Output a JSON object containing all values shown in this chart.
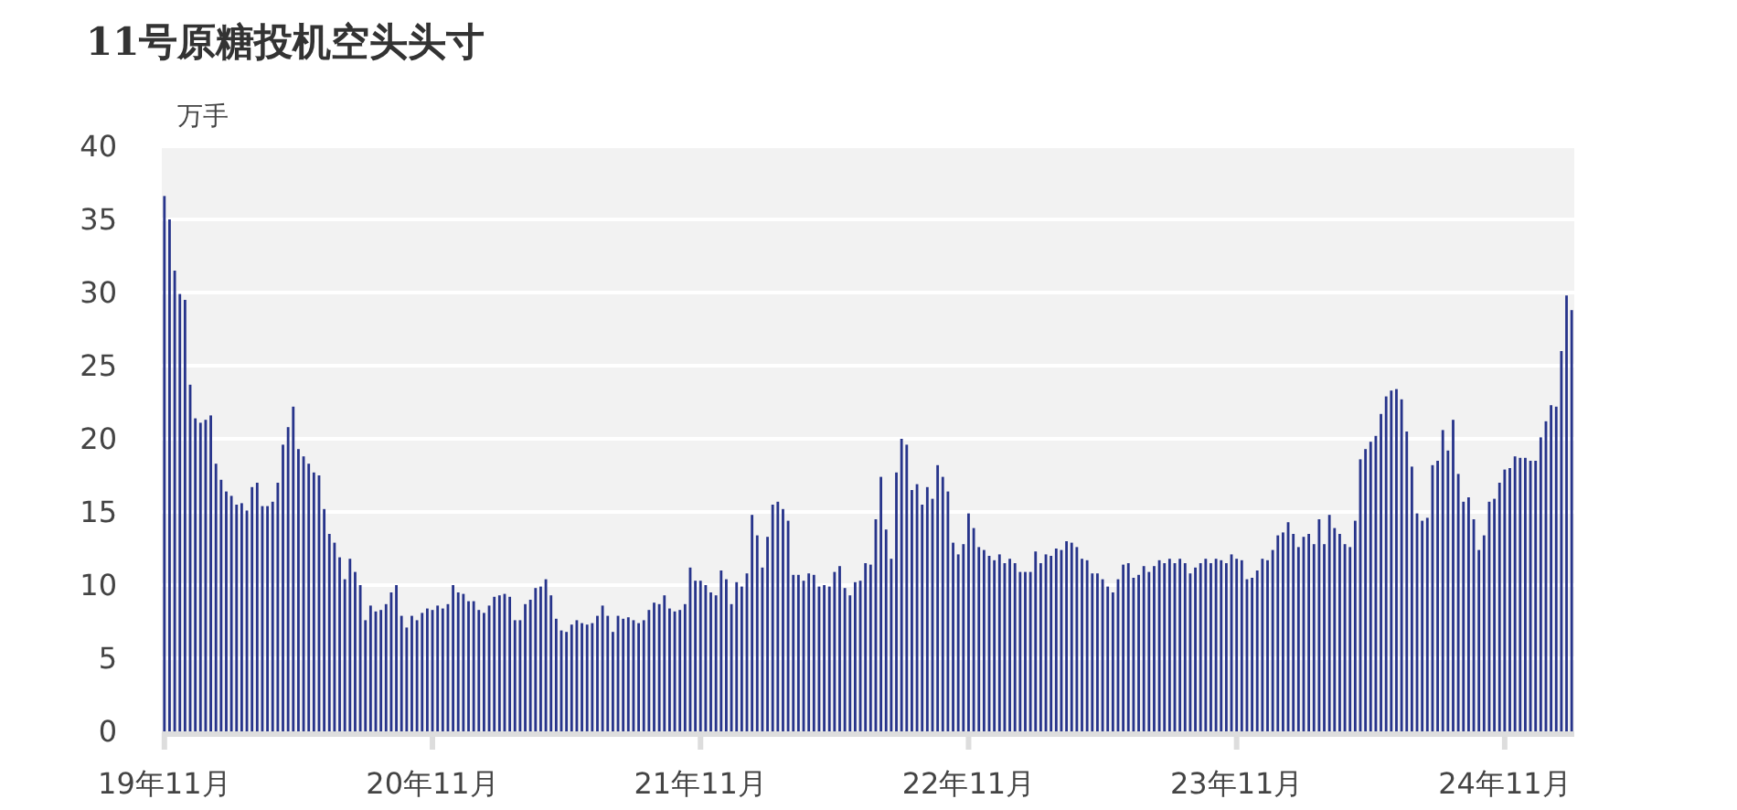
{
  "chart_data": {
    "type": "bar",
    "title": "11号原糖投机空头头寸",
    "ylabel": "万手",
    "categories": [
      "19年11月",
      null,
      null,
      null,
      null,
      null,
      null,
      null,
      null,
      null,
      null,
      null,
      null,
      null,
      null,
      null,
      null,
      null,
      null,
      null,
      null,
      null,
      null,
      null,
      null,
      null,
      null,
      null,
      null,
      null,
      null,
      null,
      null,
      null,
      null,
      null,
      null,
      null,
      null,
      null,
      null,
      null,
      null,
      null,
      null,
      null,
      null,
      null,
      null,
      null,
      null,
      null,
      "20年11月",
      null,
      null,
      null,
      null,
      null,
      null,
      null,
      null,
      null,
      null,
      null,
      null,
      null,
      null,
      null,
      null,
      null,
      null,
      null,
      null,
      null,
      null,
      null,
      null,
      null,
      null,
      null,
      null,
      null,
      null,
      null,
      null,
      null,
      null,
      null,
      null,
      null,
      null,
      null,
      null,
      null,
      null,
      null,
      null,
      null,
      null,
      null,
      null,
      null,
      null,
      null,
      "21年11月",
      null,
      null,
      null,
      null,
      null,
      null,
      null,
      null,
      null,
      null,
      null,
      null,
      null,
      null,
      null,
      null,
      null,
      null,
      null,
      null,
      null,
      null,
      null,
      null,
      null,
      null,
      null,
      null,
      null,
      null,
      null,
      null,
      null,
      null,
      null,
      null,
      null,
      null,
      null,
      null,
      null,
      null,
      null,
      null,
      null,
      null,
      null,
      null,
      null,
      null,
      null,
      "22年11月",
      null,
      null,
      null,
      null,
      null,
      null,
      null,
      null,
      null,
      null,
      null,
      null,
      null,
      null,
      null,
      null,
      null,
      null,
      null,
      null,
      null,
      null,
      null,
      null,
      null,
      null,
      null,
      null,
      null,
      null,
      null,
      null,
      null,
      null,
      null,
      null,
      null,
      null,
      null,
      null,
      null,
      null,
      null,
      null,
      null,
      null,
      null,
      null,
      null,
      null,
      null,
      "23年11月",
      null,
      null,
      null,
      null,
      null,
      null,
      null,
      null,
      null,
      null,
      null,
      null,
      null,
      null,
      null,
      null,
      null,
      null,
      null,
      null,
      null,
      null,
      null,
      null,
      null,
      null,
      null,
      null,
      null,
      null,
      null,
      null,
      null,
      null,
      null,
      null,
      null,
      null,
      null,
      null,
      null,
      null,
      null,
      null,
      null,
      null,
      null,
      null,
      null,
      null,
      null,
      "24年11月",
      null,
      null,
      null,
      null,
      null,
      null,
      null,
      null,
      null,
      null,
      null,
      null,
      null
    ],
    "values": [
      36.6,
      35.0,
      31.5,
      29.9,
      29.5,
      23.7,
      21.4,
      21.1,
      21.3,
      21.6,
      18.3,
      17.2,
      16.4,
      16.1,
      15.5,
      15.6,
      15.1,
      16.7,
      17.0,
      15.4,
      15.4,
      15.7,
      17.0,
      19.6,
      20.8,
      22.2,
      19.3,
      18.8,
      18.3,
      17.7,
      17.5,
      15.2,
      13.5,
      12.9,
      11.9,
      10.4,
      11.8,
      10.9,
      10.0,
      7.6,
      8.6,
      8.2,
      8.3,
      8.7,
      9.5,
      10.0,
      7.9,
      7.1,
      7.9,
      7.6,
      8.1,
      8.4,
      8.3,
      8.6,
      8.4,
      8.7,
      10.0,
      9.5,
      9.4,
      8.9,
      8.9,
      8.3,
      8.1,
      8.6,
      9.2,
      9.3,
      9.4,
      9.2,
      7.6,
      7.6,
      8.7,
      9.0,
      9.8,
      9.9,
      10.4,
      9.3,
      7.7,
      6.9,
      6.8,
      7.3,
      7.6,
      7.4,
      7.3,
      7.4,
      7.9,
      8.6,
      7.9,
      6.8,
      7.9,
      7.7,
      7.8,
      7.6,
      7.4,
      7.6,
      8.3,
      8.8,
      8.7,
      9.3,
      8.4,
      8.2,
      8.3,
      8.7,
      11.2,
      10.3,
      10.3,
      10.0,
      9.5,
      9.3,
      11.0,
      10.4,
      8.7,
      10.2,
      9.9,
      10.8,
      14.8,
      13.4,
      11.2,
      13.3,
      15.5,
      15.7,
      15.2,
      14.4,
      10.7,
      10.7,
      10.3,
      10.8,
      10.7,
      9.9,
      10.0,
      9.9,
      10.9,
      11.3,
      9.8,
      9.3,
      10.2,
      10.3,
      11.5,
      11.4,
      14.5,
      17.4,
      13.8,
      11.8,
      17.7,
      20.0,
      19.6,
      16.5,
      16.9,
      15.5,
      16.7,
      15.9,
      18.2,
      17.4,
      16.4,
      12.9,
      12.1,
      12.8,
      14.9,
      13.9,
      12.6,
      12.4,
      12.0,
      11.7,
      12.1,
      11.5,
      11.8,
      11.5,
      10.9,
      10.9,
      10.9,
      12.3,
      11.5,
      12.1,
      12.0,
      12.5,
      12.4,
      13.0,
      12.9,
      12.6,
      11.8,
      11.7,
      10.8,
      10.8,
      10.4,
      9.9,
      9.5,
      10.4,
      11.4,
      11.5,
      10.5,
      10.7,
      11.3,
      10.9,
      11.3,
      11.7,
      11.5,
      11.8,
      11.5,
      11.8,
      11.5,
      10.8,
      11.2,
      11.5,
      11.8,
      11.5,
      11.8,
      11.7,
      11.5,
      12.1,
      11.8,
      11.7,
      10.4,
      10.5,
      11.0,
      11.8,
      11.7,
      12.4,
      13.4,
      13.6,
      14.3,
      13.5,
      12.6,
      13.3,
      13.5,
      12.8,
      14.5,
      12.8,
      14.8,
      13.9,
      13.5,
      12.8,
      12.6,
      14.4,
      18.6,
      19.3,
      19.8,
      20.2,
      21.7,
      22.9,
      23.3,
      23.4,
      22.7,
      20.5,
      18.1,
      14.9,
      14.4,
      14.6,
      18.2,
      18.5,
      20.6,
      19.2,
      21.3,
      17.6,
      15.7,
      16.0,
      14.5,
      12.4,
      13.4,
      15.7,
      15.9,
      17.0,
      17.9,
      18.0,
      18.8,
      18.7,
      18.7,
      18.5,
      18.5,
      20.1,
      21.2,
      22.3,
      22.2,
      26.0,
      29.8,
      28.8
    ],
    "color": "#27348b",
    "ylim": [
      0,
      40
    ],
    "yticks": [
      0,
      5,
      10,
      15,
      20,
      25,
      30,
      35,
      40
    ],
    "grid": "y"
  }
}
